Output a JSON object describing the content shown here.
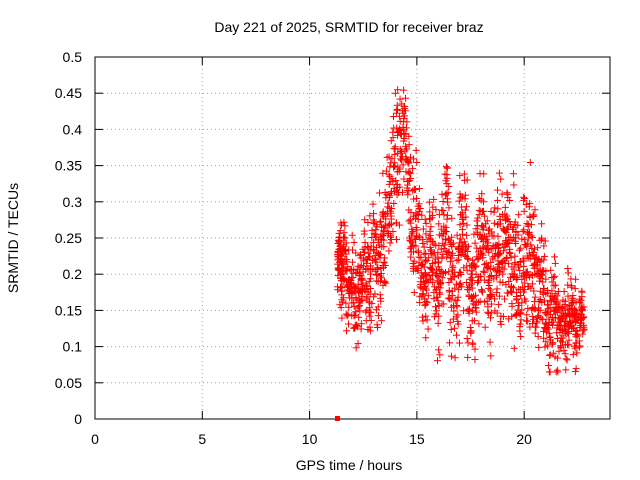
{
  "chart_data": {
    "type": "scatter",
    "title": "Day 221 of 2025, SRMTID for receiver braz",
    "xlabel": "GPS time / hours",
    "ylabel": "SRMTID / TECUs",
    "xlim": [
      0,
      24
    ],
    "ylim": [
      0,
      0.5
    ],
    "xticks": [
      0,
      5,
      10,
      15,
      20
    ],
    "xtick_labels": [
      "0",
      "5",
      "10",
      "15",
      "20"
    ],
    "yticks": [
      0,
      0.05,
      0.1,
      0.15,
      0.2,
      0.25,
      0.3,
      0.35,
      0.4,
      0.45,
      0.5
    ],
    "ytick_labels": [
      "0",
      "0.05",
      "0.1",
      "0.15",
      "0.2",
      "0.25",
      "0.3",
      "0.35",
      "0.4",
      "0.45",
      "0.5"
    ],
    "grid": true,
    "marker": "+",
    "color": "#ff0000",
    "series": [
      {
        "name": "SRMTID",
        "x": [
          11.3,
          11.4,
          11.5,
          11.6,
          11.8,
          12.0,
          12.2,
          12.4,
          12.6,
          12.8,
          13.0,
          13.2,
          13.4,
          13.6,
          13.8,
          14.0,
          14.2,
          14.4,
          14.6,
          14.8,
          15.0,
          15.2,
          15.4,
          15.6,
          15.8,
          16.0,
          16.2,
          16.4,
          16.6,
          16.8,
          17.0,
          17.2,
          17.4,
          17.6,
          17.8,
          18.0,
          18.2,
          18.4,
          18.6,
          18.8,
          19.0,
          19.2,
          19.4,
          19.6,
          19.8,
          20.0,
          20.2,
          20.4,
          20.6,
          20.8,
          21.0,
          21.2,
          21.4,
          21.6,
          21.8,
          22.0,
          22.2,
          22.4,
          22.6
        ],
        "y": [
          0.21,
          0.25,
          0.19,
          0.23,
          0.17,
          0.2,
          0.16,
          0.19,
          0.22,
          0.18,
          0.24,
          0.2,
          0.23,
          0.27,
          0.3,
          0.34,
          0.38,
          0.41,
          0.33,
          0.26,
          0.28,
          0.22,
          0.19,
          0.24,
          0.21,
          0.17,
          0.26,
          0.29,
          0.2,
          0.16,
          0.22,
          0.25,
          0.19,
          0.17,
          0.21,
          0.27,
          0.23,
          0.18,
          0.21,
          0.24,
          0.2,
          0.26,
          0.23,
          0.2,
          0.18,
          0.22,
          0.25,
          0.2,
          0.17,
          0.19,
          0.15,
          0.13,
          0.16,
          0.12,
          0.14,
          0.13,
          0.15,
          0.12,
          0.14
        ],
        "spread": [
          0.04,
          0.06,
          0.05,
          0.06,
          0.05,
          0.06,
          0.05,
          0.06,
          0.06,
          0.07,
          0.06,
          0.07,
          0.07,
          0.07,
          0.08,
          0.08,
          0.07,
          0.06,
          0.08,
          0.08,
          0.08,
          0.08,
          0.07,
          0.08,
          0.08,
          0.08,
          0.09,
          0.08,
          0.08,
          0.08,
          0.08,
          0.09,
          0.08,
          0.08,
          0.08,
          0.09,
          0.08,
          0.08,
          0.08,
          0.09,
          0.08,
          0.09,
          0.09,
          0.08,
          0.08,
          0.09,
          0.1,
          0.09,
          0.07,
          0.07,
          0.06,
          0.06,
          0.06,
          0.05,
          0.05,
          0.05,
          0.05,
          0.04,
          0.04
        ]
      },
      {
        "name": "marker-at-zero",
        "x": [
          11.3
        ],
        "y": [
          0.0
        ]
      }
    ]
  }
}
